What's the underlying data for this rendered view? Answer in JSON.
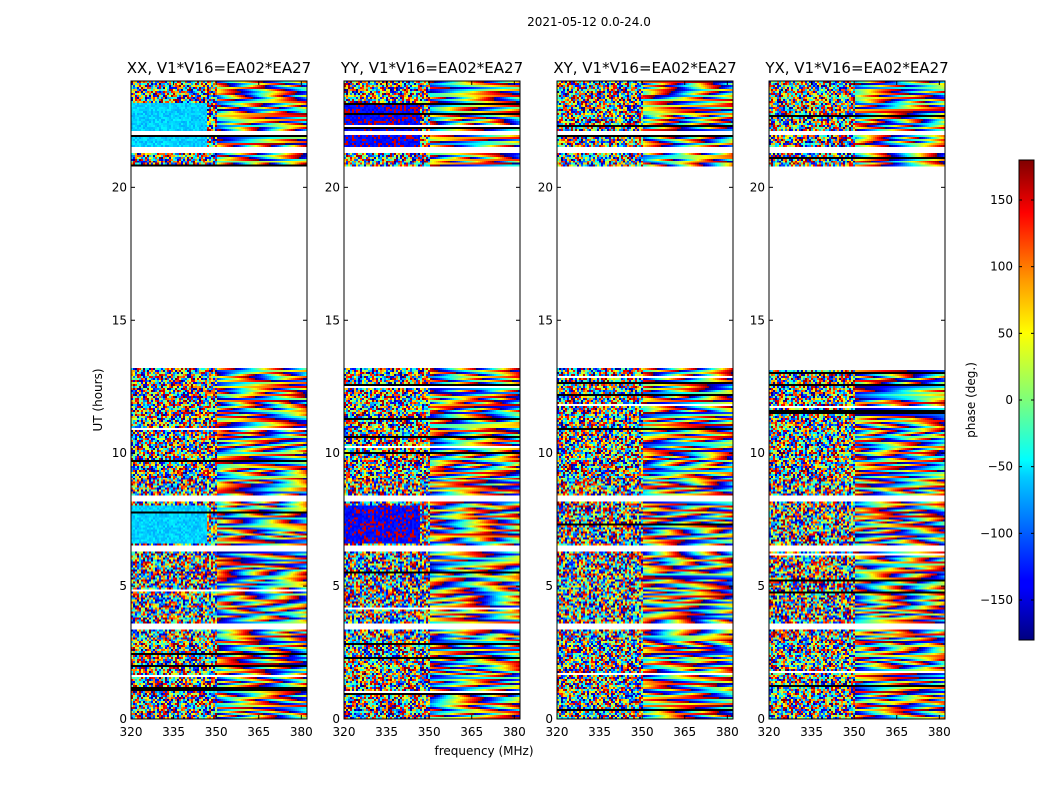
{
  "chart_data": {
    "type": "heatmap",
    "suptitle": "2021-05-12 0.0-24.0",
    "xlabel": "frequency (MHz)",
    "ylabel": "UT (hours)",
    "xlim": [
      320,
      382
    ],
    "ylim": [
      0,
      24
    ],
    "xticks": [
      320,
      335,
      350,
      365,
      380
    ],
    "yticks": [
      0,
      5,
      10,
      15,
      20
    ],
    "panels": [
      {
        "name": "XX",
        "title": "XX, V1*V16=EA02*EA27",
        "style": "xx"
      },
      {
        "name": "YY",
        "title": "YY, V1*V16=EA02*EA27",
        "style": "yy"
      },
      {
        "name": "XY",
        "title": "XY, V1*V16=EA02*EA27",
        "style": "cross"
      },
      {
        "name": "YX",
        "title": "YX, V1*V16=EA02*EA27",
        "style": "cross"
      }
    ],
    "data_gaps_ut": [
      [
        13.2,
        20.8
      ],
      [
        8.2,
        8.4
      ],
      [
        6.3,
        6.5
      ],
      [
        3.4,
        3.6
      ],
      [
        21.3,
        21.5
      ],
      [
        22.0,
        22.1
      ]
    ],
    "colorbar": {
      "label": "phase (deg.)",
      "range": [
        -180,
        180
      ],
      "ticks": [
        150,
        100,
        50,
        0,
        -50,
        -100,
        -150
      ],
      "tick_labels": [
        "150",
        "100",
        "50",
        "0",
        "−50",
        "−100",
        "−150"
      ],
      "colormap": "jet"
    }
  }
}
